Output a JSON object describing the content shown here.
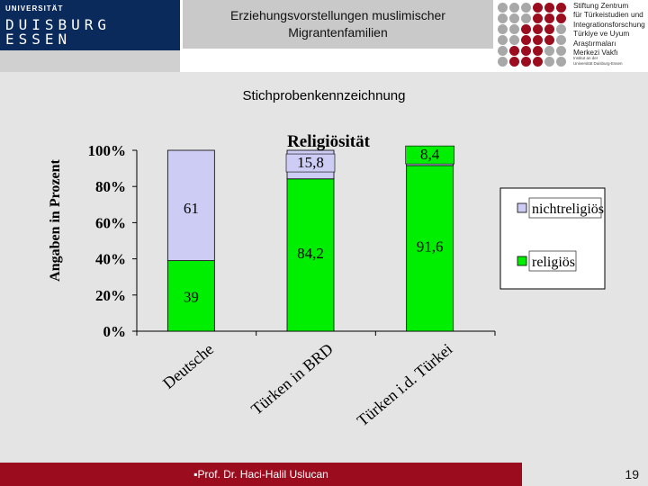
{
  "header": {
    "uni_small": "UNIVERSITÄT",
    "uni_line1": "DUISBURG",
    "uni_line2": "ESSEN",
    "title_line1": "Erziehungsvorstellungen muslimischer",
    "title_line2": "Migrantenfamilien",
    "institute_lines": [
      "Stiftung Zentrum",
      "für Türkeistudien und",
      "Integrationsforschung",
      "Türkiye ve Uyum",
      "Araştırmaları",
      "Merkezi Vakfı"
    ],
    "institute_small_lines": [
      "Institut an der",
      "Universität Duisburg-Essen"
    ]
  },
  "slide": {
    "subtitle": "Stichprobenkennzeichnung",
    "footer": "▪Prof. Dr. Haci-Halil Uslucan",
    "page_number": "19"
  },
  "colors": {
    "religious": "#00ee00",
    "nonreligious": "#ccccf4",
    "footer": "#9b0d1e",
    "logo": "#0a2a5c"
  },
  "chart_data": {
    "type": "bar",
    "stacked": true,
    "title": "Religiösität",
    "ylabel": "Angaben in Prozent",
    "ylim": [
      0,
      100
    ],
    "y_ticks": [
      "0%",
      "20%",
      "40%",
      "60%",
      "80%",
      "100%"
    ],
    "categories": [
      "Deutsche",
      "Türken in BRD",
      "Türken i.d. Türkei"
    ],
    "series": [
      {
        "name": "religiös",
        "values": [
          39,
          84.2,
          91.6
        ],
        "labels": [
          "39",
          "84,2",
          "91,6"
        ]
      },
      {
        "name": "nichtreligiös",
        "values": [
          61,
          15.8,
          8.4
        ],
        "labels": [
          "61",
          "15,8",
          "8,4"
        ]
      }
    ],
    "legend": [
      "nichtreligiös",
      "religiös"
    ],
    "legend_position": "right"
  }
}
